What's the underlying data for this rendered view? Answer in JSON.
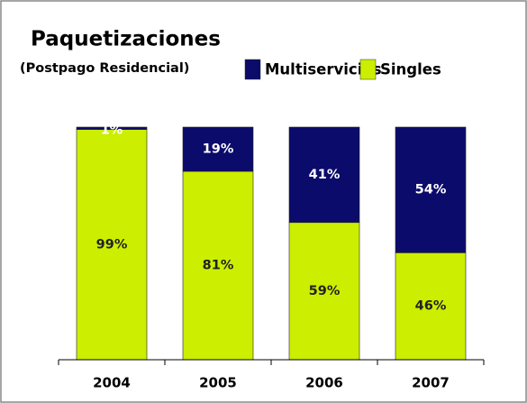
{
  "chart_data": {
    "type": "stacked_bar",
    "title": "Paquetizaciones",
    "subtitle": "(Postpago Residencial)",
    "categories": [
      "2004",
      "2005",
      "2006",
      "2007"
    ],
    "series": [
      {
        "name": "Multiservicios",
        "color": "#0b0b6b",
        "values": [
          1,
          19,
          41,
          54
        ],
        "value_labels": [
          "1%",
          "19%",
          "41%",
          "54%"
        ]
      },
      {
        "name": "Singles",
        "color": "#ccee00",
        "values": [
          99,
          81,
          59,
          46
        ],
        "value_labels": [
          "99%",
          "81%",
          "59%",
          "46%"
        ]
      }
    ],
    "ylim": [
      0,
      100
    ]
  }
}
